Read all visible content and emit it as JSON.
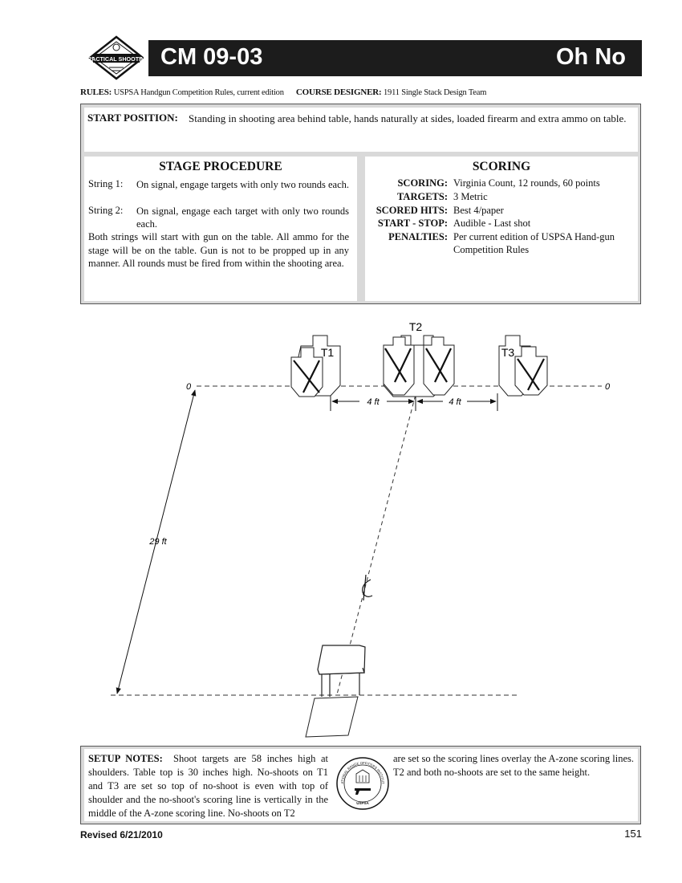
{
  "header": {
    "stage_number": "CM 09-03",
    "stage_name": "Oh No",
    "logo_text": "PRACTICAL SHOOTING"
  },
  "rules_line": {
    "rules_label": "RULES:",
    "rules_value": "USPSA Handgun Competition Rules, current edition",
    "designer_label": "COURSE DESIGNER:",
    "designer_value": "1911 Single Stack Design Team"
  },
  "start_position": {
    "label": "START POSITION:",
    "text": "Standing in shooting area behind table, hands naturally at sides, loaded firearm and extra ammo on table."
  },
  "stage_procedure": {
    "heading": "STAGE PROCEDURE",
    "strings": [
      {
        "label": "String 1:",
        "text": "On signal, engage targets with only two rounds each."
      },
      {
        "label": "String 2:",
        "text": "On signal, engage each target with only two rounds each."
      }
    ],
    "paragraph": "Both strings will start with gun on the table. All ammo for the stage will be on the table. Gun is not to be propped up in any manner. All rounds must be fired from within the shooting area."
  },
  "scoring": {
    "heading": "SCORING",
    "rows": [
      {
        "key": "SCORING:",
        "value": "Virginia Count, 12 rounds, 60 points"
      },
      {
        "key": "TARGETS:",
        "value": "3 Metric"
      },
      {
        "key": "SCORED HITS:",
        "value": "Best 4/paper"
      },
      {
        "key": "START - STOP:",
        "value": "Audible - Last shot"
      },
      {
        "key": "PENALTIES:",
        "value": "Per current edition of USPSA Hand-gun Competition Rules"
      }
    ]
  },
  "diagram": {
    "target_labels": [
      "T1",
      "T2",
      "T3"
    ],
    "zero_left": "0",
    "zero_right": "0",
    "spacing_left": "4 ft",
    "spacing_right": "4 ft",
    "distance": "29 ft"
  },
  "setup_notes": {
    "label": "SETUP NOTES:",
    "col1": "Shoot targets are 58 inches high at shoulders. Table top is 30 inches high. No-shoots on T1 and T3 are set so top of no-shoot is even with top of shoulder and the no-shoot's scoring line is vertically in the middle of the A-zone scoring line. No-shoots on T2",
    "col2": "are set so the scoring lines overlay the A-zone scoring lines. T2 and both no-shoots are set to the same height.",
    "seal_text": "NATIONAL RANGE OFFICERS INSTITUTE",
    "seal_bottom": "USPSA"
  },
  "footer": {
    "revised": "Revised 6/21/2010",
    "page_number": "151"
  },
  "colors": {
    "title_bar": "#1c1c1c",
    "panel_bg": "#d9d9d9"
  }
}
